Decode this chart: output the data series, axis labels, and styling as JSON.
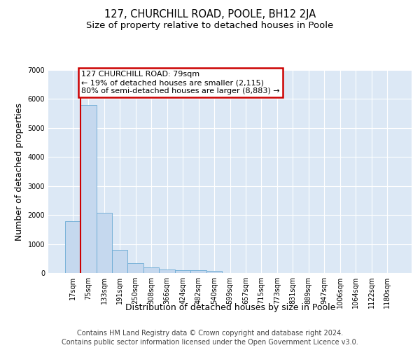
{
  "title": "127, CHURCHILL ROAD, POOLE, BH12 2JA",
  "subtitle": "Size of property relative to detached houses in Poole",
  "xlabel": "Distribution of detached houses by size in Poole",
  "ylabel": "Number of detached properties",
  "categories": [
    "17sqm",
    "75sqm",
    "133sqm",
    "191sqm",
    "250sqm",
    "308sqm",
    "366sqm",
    "424sqm",
    "482sqm",
    "540sqm",
    "599sqm",
    "657sqm",
    "715sqm",
    "773sqm",
    "831sqm",
    "889sqm",
    "947sqm",
    "1006sqm",
    "1064sqm",
    "1122sqm",
    "1180sqm"
  ],
  "values": [
    1780,
    5800,
    2080,
    800,
    340,
    190,
    115,
    105,
    95,
    75,
    0,
    0,
    0,
    0,
    0,
    0,
    0,
    0,
    0,
    0,
    0
  ],
  "bar_color": "#c5d8ee",
  "bar_edge_color": "#6aaad4",
  "highlight_color": "#cc0000",
  "annotation_text": "127 CHURCHILL ROAD: 79sqm\n← 19% of detached houses are smaller (2,115)\n80% of semi-detached houses are larger (8,883) →",
  "annotation_box_color": "#ffffff",
  "annotation_box_edge": "#cc0000",
  "vline_bar_index": 1,
  "ylim": [
    0,
    7000
  ],
  "yticks": [
    0,
    1000,
    2000,
    3000,
    4000,
    5000,
    6000,
    7000
  ],
  "footer1": "Contains HM Land Registry data © Crown copyright and database right 2024.",
  "footer2": "Contains public sector information licensed under the Open Government Licence v3.0.",
  "plot_bg_color": "#dce8f5",
  "title_fontsize": 10.5,
  "subtitle_fontsize": 9.5,
  "axis_label_fontsize": 9,
  "tick_fontsize": 7,
  "footer_fontsize": 7,
  "annot_fontsize": 8
}
